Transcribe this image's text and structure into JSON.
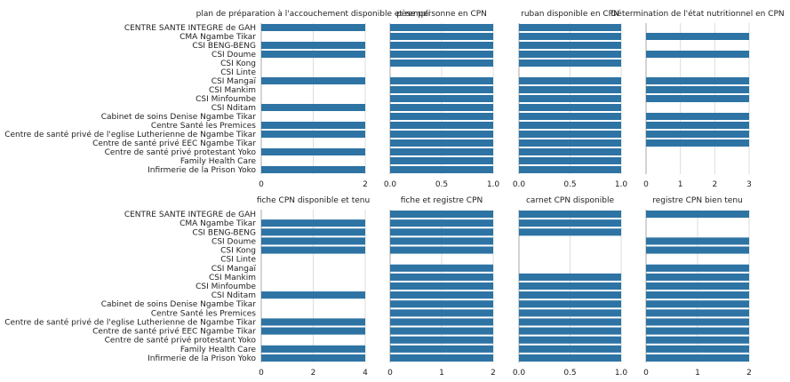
{
  "bar_color": "#2d73a4",
  "grid_color": "#dddddd",
  "axis_color": "#aaaaaa",
  "text_color": "#222222",
  "chart_data": [
    {
      "type": "bar",
      "orientation": "horizontal",
      "title": "plan de préparation à l'accouchement disponible et rempli",
      "categories": [
        "CENTRE SANTE INTEGRE  de GAH",
        "CMA Ngambe Tikar",
        "CSI BENG-BENG",
        "CSI Doume",
        "CSI Kong",
        "CSI Linte",
        "CSI Mangaï",
        "CSI Mankim",
        "CSI Minfoumbe",
        "CSI Nditam",
        "Cabinet de soins Denise Ngambe Tikar",
        "Centre Santé les Premices",
        "Centre de santé privé  de l'eglise Lutherienne de Ngambe Tikar",
        "Centre de santé privé EEC Ngambe Tikar",
        "Centre de santé privé protestant Yoko",
        "Family Health Care",
        "Infirmerie de la Prison Yoko"
      ],
      "values": [
        2,
        0,
        2,
        2,
        0,
        0,
        2,
        0,
        0,
        2,
        0,
        2,
        2,
        0,
        2,
        0,
        2
      ],
      "xlim": [
        0,
        2
      ],
      "xticks": [
        0,
        1,
        2
      ],
      "xtick_labels": [
        "0",
        "",
        "2"
      ]
    },
    {
      "type": "bar",
      "orientation": "horizontal",
      "title": "pèse personne en CPN",
      "values": [
        1,
        1,
        1,
        1,
        1,
        0,
        1,
        1,
        1,
        1,
        1,
        1,
        1,
        1,
        1,
        1,
        1
      ],
      "xlim": [
        0,
        1
      ],
      "xticks": [
        0,
        0.5,
        1
      ],
      "xtick_labels": [
        "0.0",
        "0.5",
        "1.0"
      ]
    },
    {
      "type": "bar",
      "orientation": "horizontal",
      "title": "ruban disponible en CPN",
      "values": [
        1,
        1,
        1,
        1,
        1,
        0,
        1,
        1,
        1,
        1,
        1,
        1,
        1,
        1,
        1,
        1,
        1
      ],
      "xlim": [
        0,
        1
      ],
      "xticks": [
        0,
        0.5,
        1
      ],
      "xtick_labels": [
        "0.0",
        "0.5",
        "1.0"
      ]
    },
    {
      "type": "bar",
      "orientation": "horizontal",
      "title": "Détermination de l'état nutritionnel en CPN",
      "values": [
        0,
        3,
        0,
        3,
        0,
        0,
        3,
        3,
        3,
        0,
        3,
        3,
        3,
        3,
        0,
        0,
        0
      ],
      "xlim": [
        0,
        3
      ],
      "xticks": [
        0,
        1,
        2,
        3
      ],
      "xtick_labels": [
        "0",
        "1",
        "2",
        "3"
      ]
    },
    {
      "type": "bar",
      "orientation": "horizontal",
      "title": "fiche CPN disponible et tenu",
      "values": [
        0,
        4,
        4,
        4,
        4,
        0,
        0,
        0,
        0,
        4,
        0,
        0,
        4,
        4,
        0,
        4,
        4
      ],
      "xlim": [
        0,
        4
      ],
      "xticks": [
        0,
        2,
        4
      ],
      "xtick_labels": [
        "0",
        "2",
        "4"
      ]
    },
    {
      "type": "bar",
      "orientation": "horizontal",
      "title": "fiche et registre CPN",
      "values": [
        2,
        2,
        2,
        2,
        2,
        0,
        2,
        2,
        2,
        2,
        2,
        2,
        2,
        2,
        2,
        2,
        2
      ],
      "xlim": [
        0,
        2
      ],
      "xticks": [
        0,
        1,
        2
      ],
      "xtick_labels": [
        "0",
        "1",
        "2"
      ]
    },
    {
      "type": "bar",
      "orientation": "horizontal",
      "title": "carnet CPN disponible",
      "values": [
        1,
        1,
        1,
        0,
        0,
        0,
        0,
        1,
        1,
        1,
        1,
        1,
        1,
        1,
        1,
        1,
        1
      ],
      "xlim": [
        0,
        1
      ],
      "xticks": [
        0,
        0.5,
        1
      ],
      "xtick_labels": [
        "0.0",
        "0.5",
        "1.0"
      ]
    },
    {
      "type": "bar",
      "orientation": "horizontal",
      "title": "registre CPN bien tenu",
      "values": [
        2,
        0,
        0,
        2,
        2,
        0,
        2,
        2,
        2,
        2,
        2,
        2,
        2,
        2,
        2,
        2,
        2
      ],
      "xlim": [
        0,
        2
      ],
      "xticks": [
        0,
        1,
        2
      ],
      "xtick_labels": [
        "0",
        "1",
        "2"
      ]
    }
  ]
}
